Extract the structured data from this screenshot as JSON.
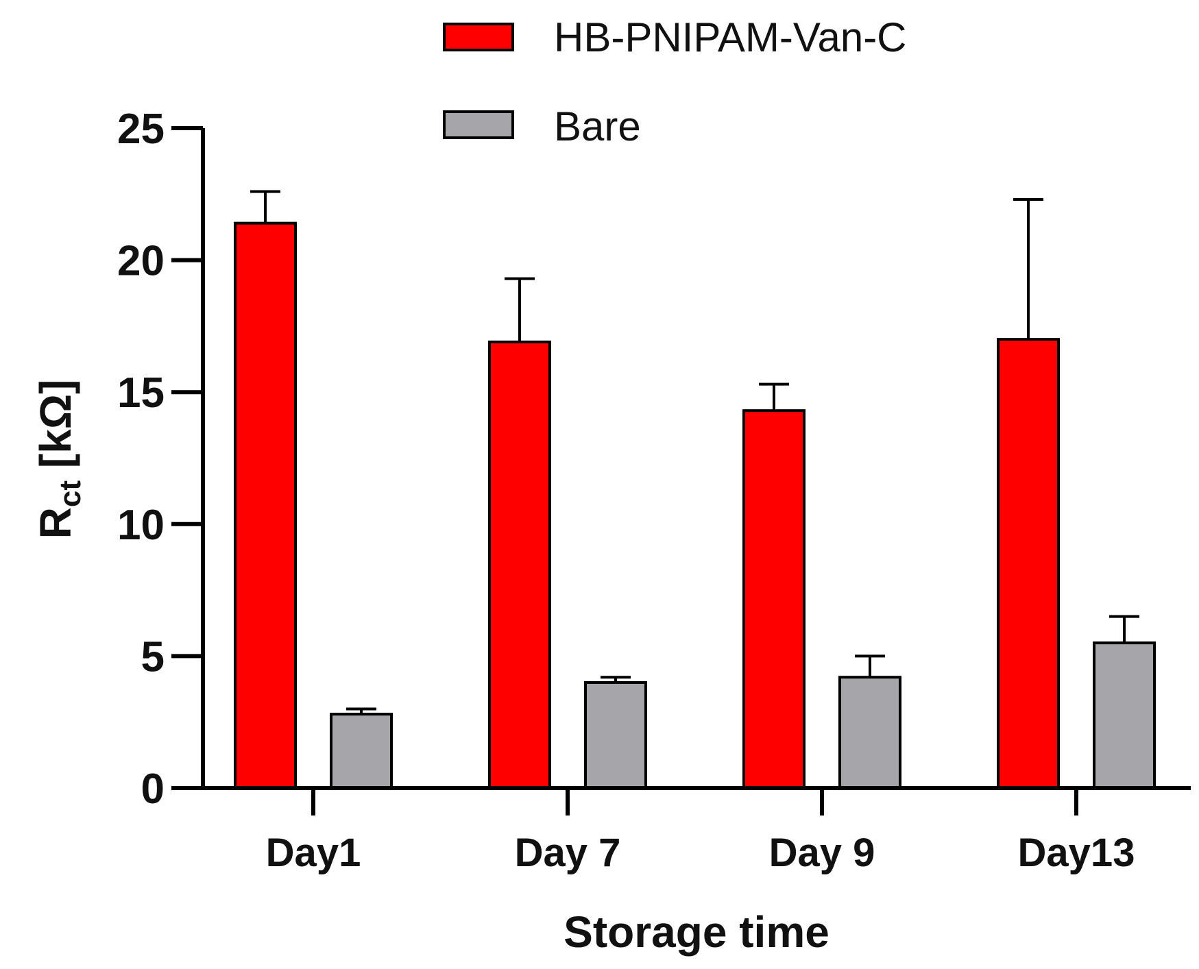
{
  "chart_data": {
    "type": "bar",
    "categories": [
      "Day1",
      "Day 7",
      "Day 9",
      "Day13"
    ],
    "series": [
      {
        "name": "HB-PNIPAM-Van-C",
        "color": "#ff0000",
        "values": [
          21.4,
          16.9,
          14.3,
          17.0
        ],
        "errors": [
          1.2,
          2.4,
          1.0,
          5.3
        ]
      },
      {
        "name": "Bare",
        "color": "#a6a6aa",
        "values": [
          2.8,
          4.0,
          4.2,
          5.5
        ],
        "errors": [
          0.2,
          0.2,
          0.8,
          1.0
        ]
      }
    ],
    "xlabel": "Storage time",
    "ylabel": "R",
    "ylabel_sub": "ct",
    "ylabel_unit": " [kΩ]",
    "ylim": [
      0,
      25
    ],
    "yticks": [
      "0",
      "5",
      "10",
      "15",
      "20",
      "25"
    ],
    "legend": "top-center"
  }
}
